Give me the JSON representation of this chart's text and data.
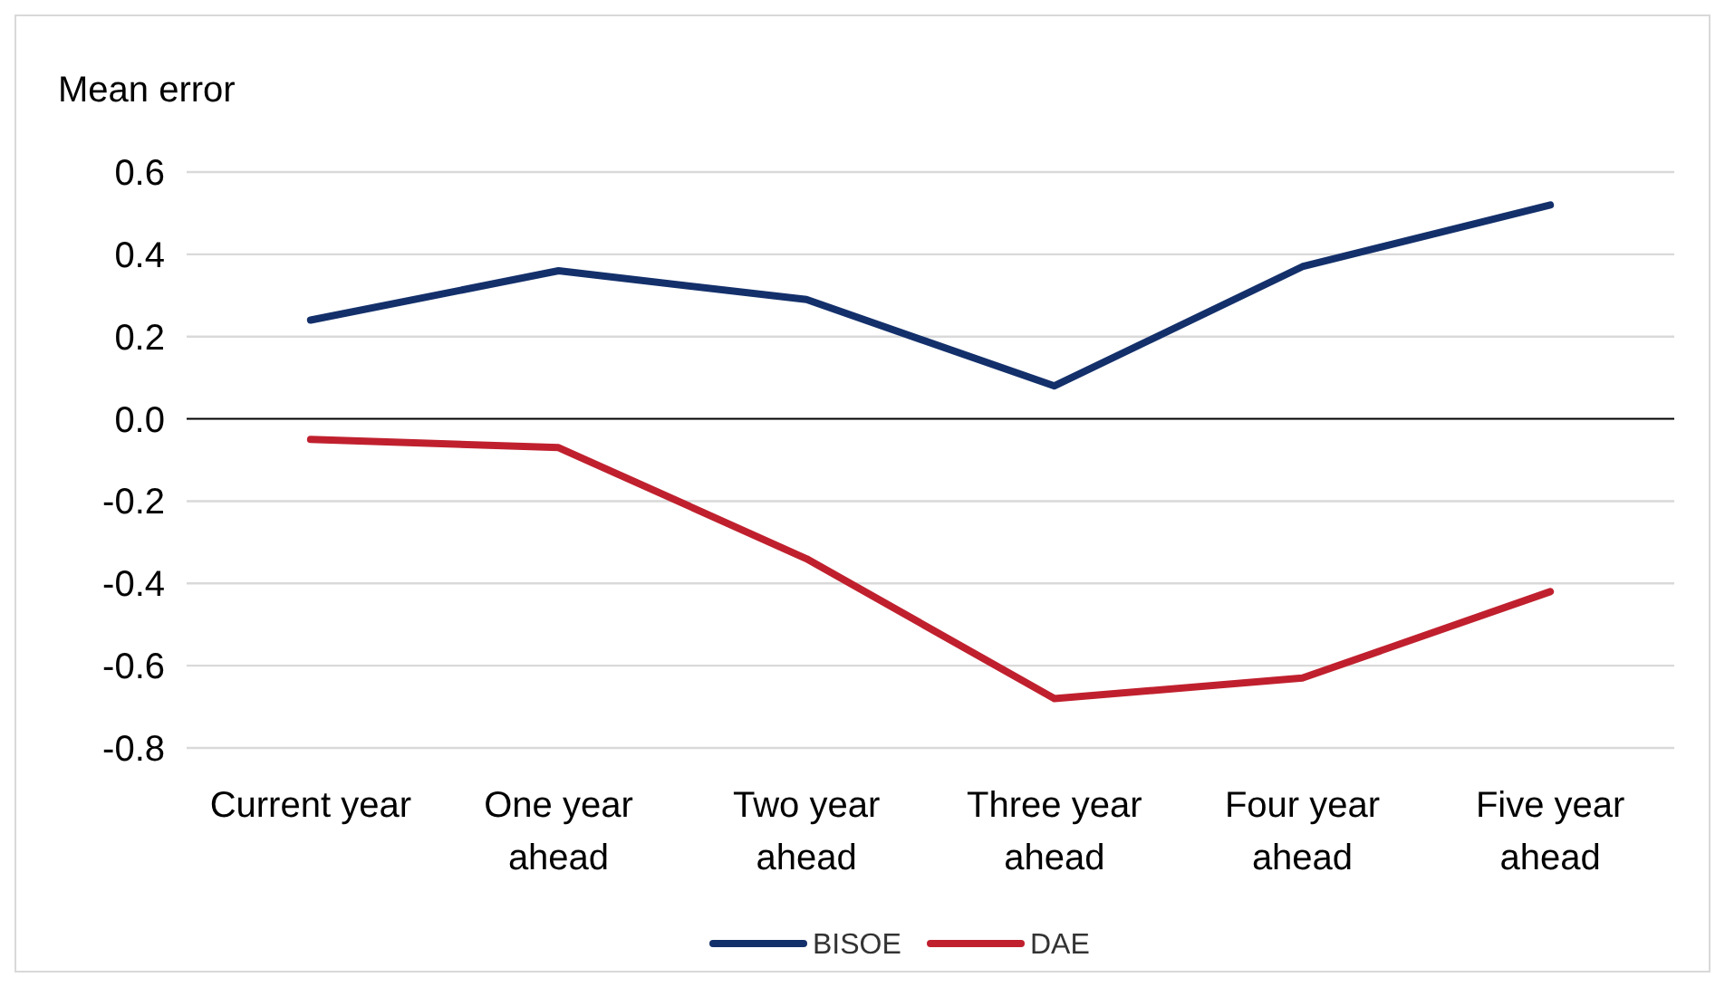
{
  "chart_data": {
    "type": "line",
    "ylabel": "Mean error",
    "categories": [
      "Current year",
      "One year ahead",
      "Two year ahead",
      "Three year ahead",
      "Four year ahead",
      "Five year ahead"
    ],
    "series": [
      {
        "name": "BISOE",
        "color": "#14306b",
        "values": [
          0.24,
          0.36,
          0.29,
          0.08,
          0.37,
          0.52
        ]
      },
      {
        "name": "DAE",
        "color": "#c0202e",
        "values": [
          -0.05,
          -0.07,
          -0.34,
          -0.68,
          -0.63,
          -0.42
        ]
      }
    ],
    "ylim": [
      -0.8,
      0.6
    ],
    "yticks": [
      {
        "value": -0.8,
        "label": "-0.8"
      },
      {
        "value": -0.6,
        "label": "-0.6"
      },
      {
        "value": -0.4,
        "label": "-0.4"
      },
      {
        "value": -0.2,
        "label": "-0.2"
      },
      {
        "value": 0,
        "label": "0.0"
      },
      {
        "value": 0.2,
        "label": "0.2"
      },
      {
        "value": 0.4,
        "label": "0.4"
      },
      {
        "value": 0.6,
        "label": "0.6"
      }
    ],
    "grid": "y",
    "legend": "bottom",
    "marker": "none",
    "line_style": "solid"
  }
}
